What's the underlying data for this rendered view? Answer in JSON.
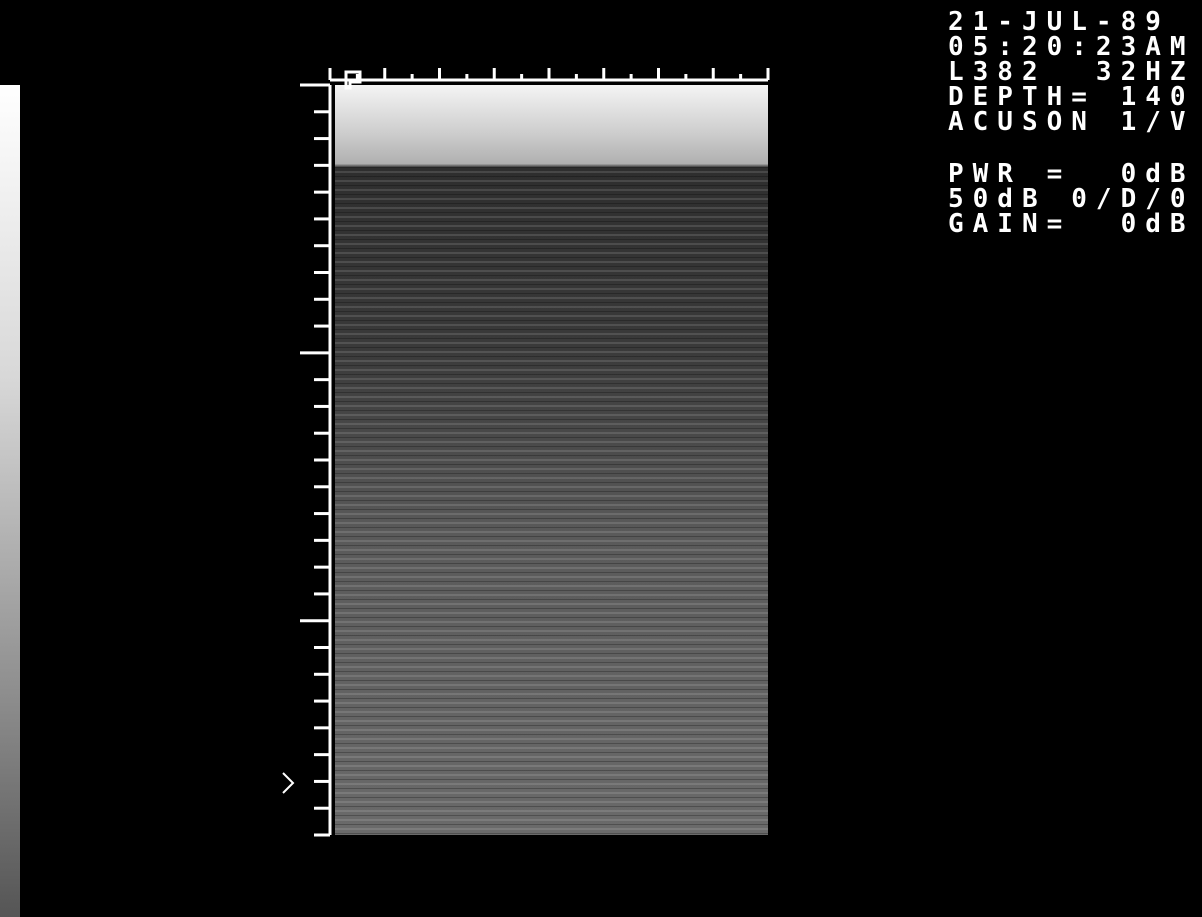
{
  "overlay": {
    "lines": [
      "21-JUL-89",
      "05:20:23AM",
      "L382  32HZ",
      "DEPTH= 140",
      "ACUSON 1/V",
      "PWR =  0dB",
      "50dB 0/D/0",
      "GAIN=  0dB"
    ]
  }
}
